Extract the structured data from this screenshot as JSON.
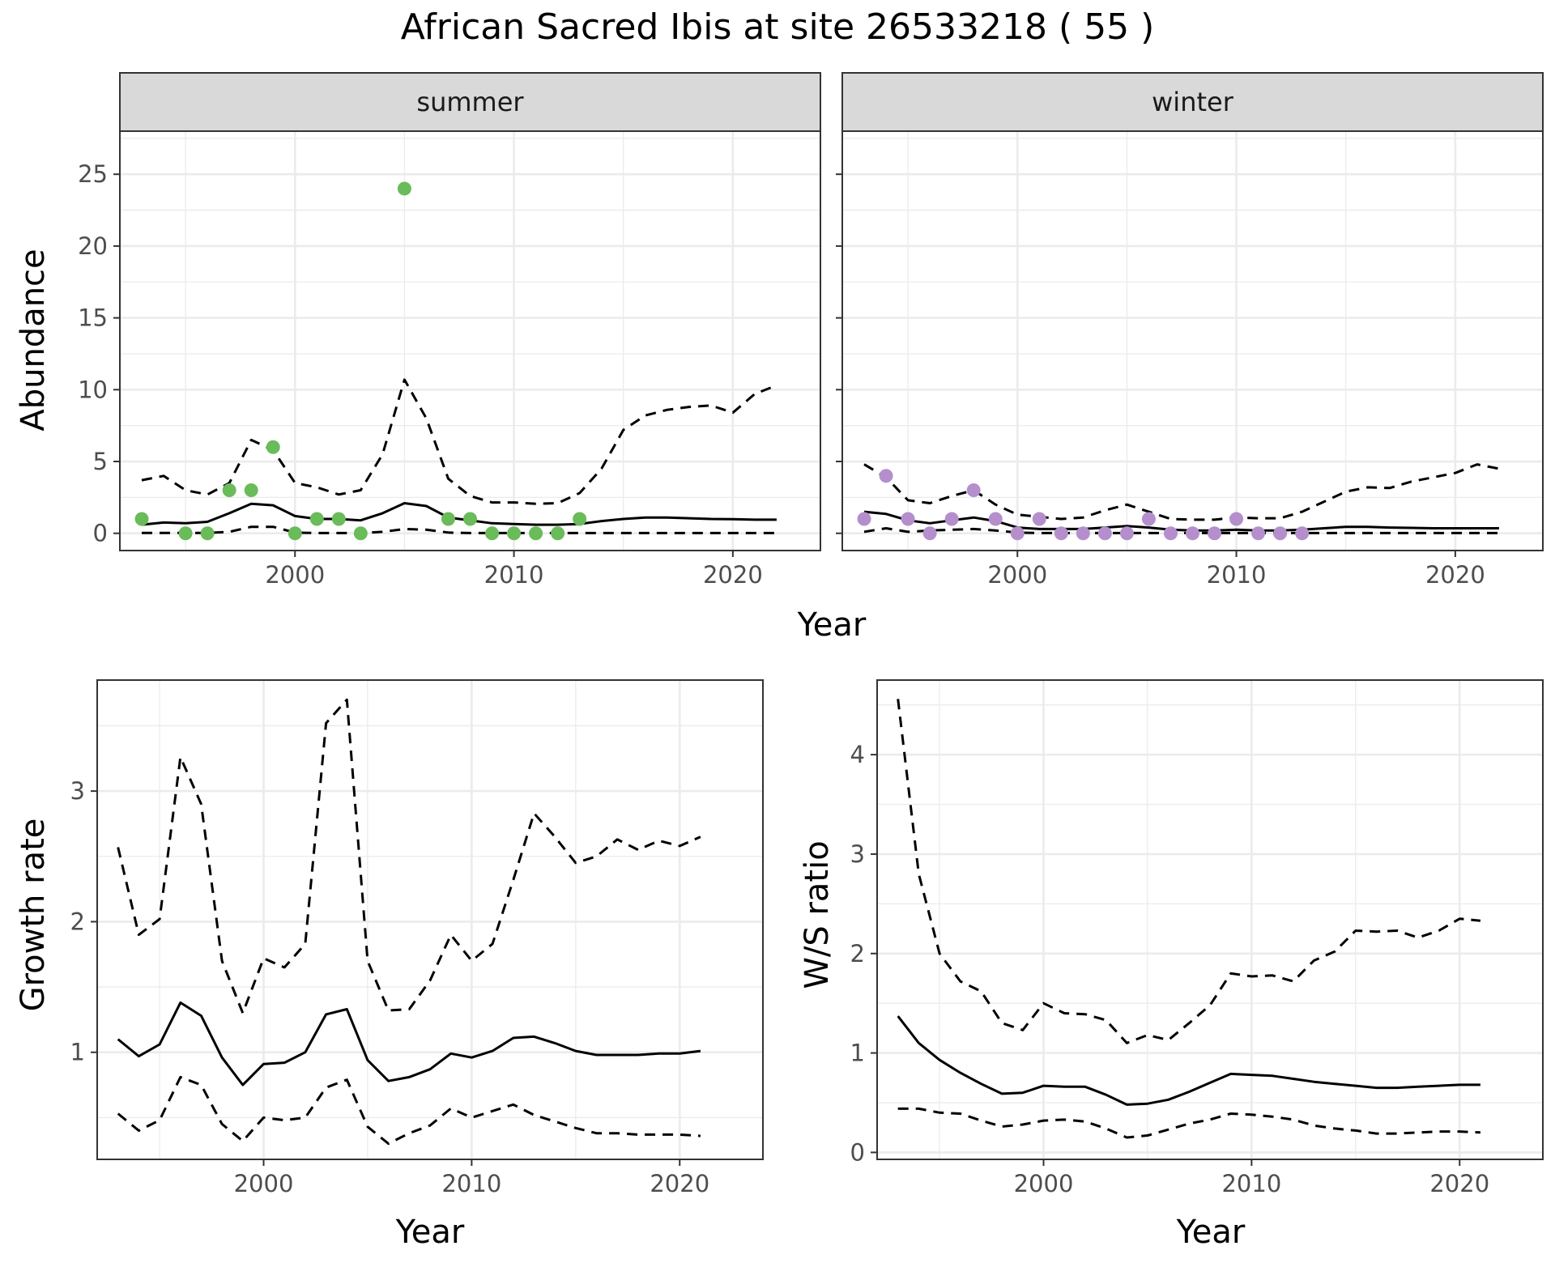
{
  "figure": {
    "title": "African Sacred Ibis at site 26533218 ( 55 )"
  },
  "colors": {
    "summer_points": "#6ABB5A",
    "winter_points": "#B48FCC",
    "line": "#000000",
    "grid": "#ebebeb",
    "strip_fill": "#d9d9d9",
    "panel_border": "#333333"
  },
  "chart_data": [
    {
      "type": "line",
      "id": "abundance",
      "facets": [
        {
          "label": "summer",
          "points": {
            "x": [
              1993,
              1995,
              1996,
              1997,
              1998,
              1999,
              2000,
              2001,
              2002,
              2003,
              2005,
              2007,
              2008,
              2009,
              2010,
              2011,
              2012,
              2013
            ],
            "y": [
              1,
              0,
              0,
              3,
              3,
              6,
              0,
              1,
              1,
              0,
              24,
              1,
              1,
              0,
              0,
              0,
              0,
              1
            ]
          },
          "series": [
            {
              "style": "solid",
              "x": [
                1993,
                1994,
                1995,
                1996,
                1997,
                1998,
                1999,
                2000,
                2001,
                2002,
                2003,
                2004,
                2005,
                2006,
                2007,
                2008,
                2009,
                2010,
                2011,
                2012,
                2013,
                2014,
                2015,
                2016,
                2017,
                2018,
                2019,
                2020,
                2021,
                2022
              ],
              "y": [
                0.6,
                0.75,
                0.7,
                0.8,
                1.4,
                2.05,
                1.95,
                1.2,
                1.0,
                1.0,
                0.9,
                1.4,
                2.1,
                1.9,
                1.1,
                0.9,
                0.7,
                0.65,
                0.6,
                0.6,
                0.65,
                0.85,
                1.0,
                1.1,
                1.1,
                1.05,
                1.0,
                0.98,
                0.95,
                0.95
              ]
            },
            {
              "style": "dashed",
              "x": [
                1993,
                1994,
                1995,
                1996,
                1997,
                1998,
                1999,
                2000,
                2001,
                2002,
                2003,
                2004,
                2005,
                2006,
                2007,
                2008,
                2009,
                2010,
                2011,
                2012,
                2013,
                2014,
                2015,
                2016,
                2017,
                2018,
                2019,
                2020,
                2021,
                2022
              ],
              "y": [
                3.7,
                4.0,
                3.0,
                2.7,
                3.5,
                6.5,
                5.8,
                3.5,
                3.2,
                2.7,
                3.0,
                5.5,
                10.7,
                8.0,
                3.8,
                2.6,
                2.15,
                2.15,
                2.05,
                2.1,
                2.8,
                4.5,
                7.2,
                8.2,
                8.6,
                8.8,
                8.9,
                8.4,
                9.7,
                10.3
              ]
            },
            {
              "style": "dashed",
              "x": [
                1993,
                1994,
                1995,
                1996,
                1997,
                1998,
                1999,
                2000,
                2001,
                2002,
                2003,
                2004,
                2005,
                2006,
                2007,
                2008,
                2009,
                2010,
                2011,
                2012,
                2013,
                2014,
                2015,
                2016,
                2017,
                2018,
                2019,
                2020,
                2021,
                2022
              ],
              "y": [
                0.03,
                0.03,
                0.03,
                0.03,
                0.1,
                0.45,
                0.45,
                0.05,
                0.02,
                0.02,
                0.02,
                0.1,
                0.3,
                0.25,
                0.05,
                0.02,
                0.02,
                0.02,
                0.02,
                0.02,
                0.02,
                0.02,
                0.02,
                0.02,
                0.02,
                0.02,
                0.02,
                0.02,
                0.02,
                0.02
              ]
            }
          ]
        },
        {
          "label": "winter",
          "points": {
            "x": [
              1993,
              1994,
              1995,
              1996,
              1997,
              1998,
              1999,
              2000,
              2001,
              2002,
              2003,
              2004,
              2005,
              2006,
              2007,
              2008,
              2009,
              2010,
              2011,
              2012,
              2013
            ],
            "y": [
              1,
              4,
              1,
              0,
              1,
              3,
              1,
              0,
              1,
              0,
              0,
              0,
              0,
              1,
              0,
              0,
              0,
              1,
              0,
              0,
              0
            ]
          },
          "series": [
            {
              "style": "solid",
              "x": [
                1993,
                1994,
                1995,
                1996,
                1997,
                1998,
                1999,
                2000,
                2001,
                2002,
                2003,
                2004,
                2005,
                2006,
                2007,
                2008,
                2009,
                2010,
                2011,
                2012,
                2013,
                2014,
                2015,
                2016,
                2017,
                2018,
                2019,
                2020,
                2021,
                2022
              ],
              "y": [
                1.5,
                1.35,
                0.9,
                0.7,
                0.9,
                1.1,
                0.85,
                0.4,
                0.3,
                0.3,
                0.3,
                0.4,
                0.5,
                0.4,
                0.25,
                0.2,
                0.2,
                0.25,
                0.2,
                0.2,
                0.25,
                0.35,
                0.45,
                0.45,
                0.4,
                0.38,
                0.35,
                0.35,
                0.35,
                0.35
              ]
            },
            {
              "style": "dashed",
              "x": [
                1993,
                1994,
                1995,
                1996,
                1997,
                1998,
                1999,
                2000,
                2001,
                2002,
                2003,
                2004,
                2005,
                2006,
                2007,
                2008,
                2009,
                2010,
                2011,
                2012,
                2013,
                2014,
                2015,
                2016,
                2017,
                2018,
                2019,
                2020,
                2021,
                2022
              ],
              "y": [
                4.8,
                3.9,
                2.3,
                2.1,
                2.6,
                3.0,
                2.0,
                1.3,
                1.15,
                1.0,
                1.1,
                1.6,
                2.0,
                1.5,
                1.0,
                0.95,
                0.95,
                1.1,
                1.05,
                1.05,
                1.5,
                2.2,
                2.9,
                3.2,
                3.15,
                3.6,
                3.9,
                4.2,
                4.8,
                4.5
              ]
            },
            {
              "style": "dashed",
              "x": [
                1993,
                1994,
                1995,
                1996,
                1997,
                1998,
                1999,
                2000,
                2001,
                2002,
                2003,
                2004,
                2005,
                2006,
                2007,
                2008,
                2009,
                2010,
                2011,
                2012,
                2013,
                2014,
                2015,
                2016,
                2017,
                2018,
                2019,
                2020,
                2021,
                2022
              ],
              "y": [
                0.1,
                0.35,
                0.1,
                0.2,
                0.25,
                0.3,
                0.2,
                0.05,
                0.02,
                0.02,
                0.02,
                0.02,
                0.02,
                0.02,
                0.02,
                0.02,
                0.02,
                0.02,
                0.02,
                0.02,
                0.02,
                0.02,
                0.02,
                0.02,
                0.02,
                0.02,
                0.02,
                0.02,
                0.02,
                0.02
              ]
            }
          ]
        }
      ],
      "xlabel": "Year",
      "ylabel": "Abundance",
      "xlim": [
        1992,
        2024
      ],
      "ylim": [
        -1.2,
        28
      ],
      "xticks": [
        2000,
        2010,
        2020
      ],
      "yticks": [
        0,
        5,
        10,
        15,
        20,
        25
      ],
      "grid": true
    },
    {
      "type": "line",
      "id": "growth",
      "series": [
        {
          "style": "solid",
          "x": [
            1993,
            1994,
            1995,
            1996,
            1997,
            1998,
            1999,
            2000,
            2001,
            2002,
            2003,
            2004,
            2005,
            2006,
            2007,
            2008,
            2009,
            2010,
            2011,
            2012,
            2013,
            2014,
            2015,
            2016,
            2017,
            2018,
            2019,
            2020,
            2021
          ],
          "y": [
            1.1,
            0.97,
            1.06,
            1.38,
            1.28,
            0.96,
            0.75,
            0.91,
            0.92,
            1.0,
            1.29,
            1.33,
            0.94,
            0.78,
            0.81,
            0.87,
            0.99,
            0.96,
            1.01,
            1.11,
            1.12,
            1.07,
            1.01,
            0.98,
            0.98,
            0.98,
            0.99,
            0.99,
            1.01
          ]
        },
        {
          "style": "dashed",
          "x": [
            1993,
            1994,
            1995,
            1996,
            1997,
            1998,
            1999,
            2000,
            2001,
            2002,
            2003,
            2004,
            2005,
            2006,
            2007,
            2008,
            2009,
            2010,
            2011,
            2012,
            2013,
            2014,
            2015,
            2016,
            2017,
            2018,
            2019,
            2020,
            2021
          ],
          "y": [
            2.57,
            1.9,
            2.02,
            3.26,
            2.9,
            1.7,
            1.3,
            1.72,
            1.65,
            1.83,
            3.52,
            3.7,
            1.7,
            1.32,
            1.33,
            1.55,
            1.9,
            1.7,
            1.83,
            2.32,
            2.83,
            2.65,
            2.45,
            2.5,
            2.63,
            2.55,
            2.62,
            2.58,
            2.65
          ]
        },
        {
          "style": "dashed",
          "x": [
            1993,
            1994,
            1995,
            1996,
            1997,
            1998,
            1999,
            2000,
            2001,
            2002,
            2003,
            2004,
            2005,
            2006,
            2007,
            2008,
            2009,
            2010,
            2011,
            2012,
            2013,
            2014,
            2015,
            2016,
            2017,
            2018,
            2019,
            2020,
            2021
          ],
          "y": [
            0.53,
            0.4,
            0.48,
            0.81,
            0.75,
            0.45,
            0.32,
            0.5,
            0.48,
            0.5,
            0.73,
            0.79,
            0.43,
            0.3,
            0.38,
            0.44,
            0.57,
            0.5,
            0.55,
            0.6,
            0.52,
            0.47,
            0.42,
            0.38,
            0.38,
            0.37,
            0.37,
            0.37,
            0.36
          ]
        }
      ],
      "xlabel": "Year",
      "ylabel": "Growth rate",
      "xlim": [
        1992,
        2024
      ],
      "ylim": [
        0.18,
        3.85
      ],
      "xticks": [
        2000,
        2010,
        2020
      ],
      "yticks": [
        1,
        2,
        3
      ],
      "grid": true
    },
    {
      "type": "line",
      "id": "ws_ratio",
      "series": [
        {
          "style": "solid",
          "x": [
            1993,
            1994,
            1995,
            1996,
            1997,
            1998,
            1999,
            2000,
            2001,
            2002,
            2003,
            2004,
            2005,
            2006,
            2007,
            2008,
            2009,
            2010,
            2011,
            2012,
            2013,
            2014,
            2015,
            2016,
            2017,
            2018,
            2019,
            2020,
            2021
          ],
          "y": [
            1.37,
            1.1,
            0.93,
            0.8,
            0.69,
            0.59,
            0.6,
            0.67,
            0.66,
            0.66,
            0.58,
            0.48,
            0.49,
            0.53,
            0.61,
            0.7,
            0.79,
            0.78,
            0.77,
            0.74,
            0.71,
            0.69,
            0.67,
            0.65,
            0.65,
            0.66,
            0.67,
            0.68,
            0.68
          ]
        },
        {
          "style": "dashed",
          "x": [
            1993,
            1994,
            1995,
            1996,
            1997,
            1998,
            1999,
            2000,
            2001,
            2002,
            2003,
            2004,
            2005,
            2006,
            2007,
            2008,
            2009,
            2010,
            2011,
            2012,
            2013,
            2014,
            2015,
            2016,
            2017,
            2018,
            2019,
            2020,
            2021
          ],
          "y": [
            4.56,
            2.8,
            2.0,
            1.72,
            1.62,
            1.3,
            1.23,
            1.5,
            1.4,
            1.39,
            1.33,
            1.1,
            1.18,
            1.13,
            1.3,
            1.48,
            1.8,
            1.77,
            1.78,
            1.72,
            1.93,
            2.02,
            2.23,
            2.22,
            2.23,
            2.16,
            2.23,
            2.35,
            2.33
          ]
        },
        {
          "style": "dashed",
          "x": [
            1993,
            1994,
            1995,
            1996,
            1997,
            1998,
            1999,
            2000,
            2001,
            2002,
            2003,
            2004,
            2005,
            2006,
            2007,
            2008,
            2009,
            2010,
            2011,
            2012,
            2013,
            2014,
            2015,
            2016,
            2017,
            2018,
            2019,
            2020,
            2021
          ],
          "y": [
            0.44,
            0.44,
            0.4,
            0.39,
            0.32,
            0.26,
            0.28,
            0.32,
            0.33,
            0.31,
            0.24,
            0.15,
            0.17,
            0.23,
            0.29,
            0.33,
            0.39,
            0.38,
            0.36,
            0.33,
            0.27,
            0.24,
            0.22,
            0.19,
            0.19,
            0.2,
            0.21,
            0.21,
            0.2
          ]
        }
      ],
      "xlabel": "Year",
      "ylabel": "W/S ratio",
      "xlim": [
        1992,
        2024
      ],
      "ylim": [
        -0.07,
        4.75
      ],
      "xticks": [
        2000,
        2010,
        2020
      ],
      "yticks": [
        0,
        1,
        2,
        3,
        4
      ],
      "grid": true
    }
  ]
}
